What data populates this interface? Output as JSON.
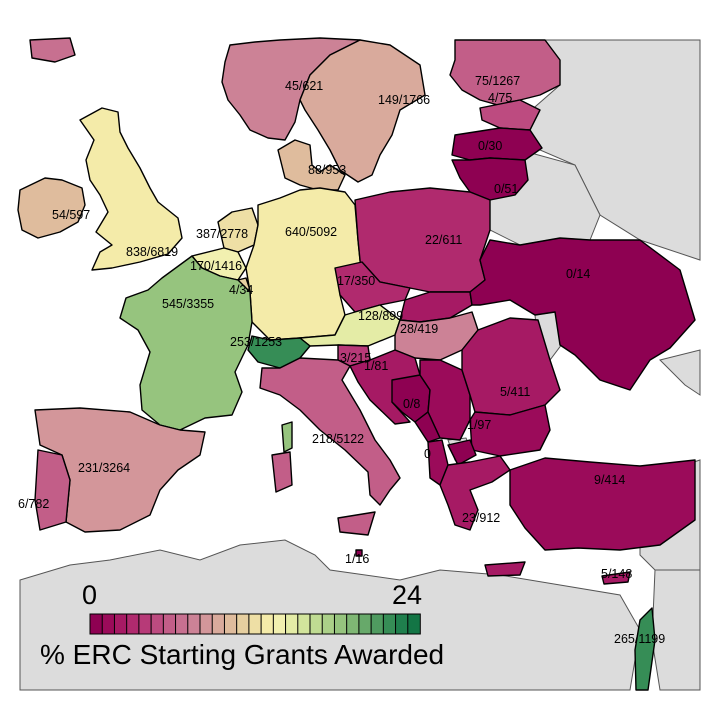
{
  "colorbar": {
    "min_label": "0",
    "max_label": "24",
    "title": "% ERC Starting Grants Awarded",
    "min_value": 0,
    "max_value": 24,
    "colors": [
      "#8e0152",
      "#9b0b5a",
      "#a61a64",
      "#b02a6e",
      "#b73a78",
      "#bd4b80",
      "#c25e88",
      "#c77090",
      "#cc8296",
      "#d3969a",
      "#d9aa9c",
      "#dfbc9d",
      "#e6cfa0",
      "#eedfa5",
      "#f4eba9",
      "#f2f0b0",
      "#e4eca6",
      "#d2e49c",
      "#bfdb92",
      "#abd088",
      "#96c47e",
      "#7fb774",
      "#67a96a",
      "#4f9b60",
      "#368d56",
      "#1f7f4d",
      "#137545"
    ],
    "colors_note": ""
  },
  "map_colors": {
    "sea": "#ffffff",
    "neighbor": "#dcdcdc"
  },
  "countries": [
    {
      "id": "iceland",
      "label": ""
    },
    {
      "id": "norway",
      "label": "45/621"
    },
    {
      "id": "sweden",
      "label": "149/1766"
    },
    {
      "id": "finland",
      "label": "75/1267"
    },
    {
      "id": "estonia",
      "label": "4/75"
    },
    {
      "id": "latvia",
      "label": "0/30"
    },
    {
      "id": "lithuania",
      "label": "0/51"
    },
    {
      "id": "denmark",
      "label": "88/953"
    },
    {
      "id": "ireland",
      "label": "54/597"
    },
    {
      "id": "uk",
      "label": "838/6819"
    },
    {
      "id": "netherlands",
      "label": "387/2778"
    },
    {
      "id": "belgium",
      "label": "170/1416"
    },
    {
      "id": "luxembourg",
      "label": "4/34"
    },
    {
      "id": "germany",
      "label": "640/5092"
    },
    {
      "id": "poland",
      "label": "22/611"
    },
    {
      "id": "czechia",
      "label": "17/350"
    },
    {
      "id": "austria",
      "label": "128/899"
    },
    {
      "id": "slovakia",
      "label": ""
    },
    {
      "id": "hungary",
      "label": "28/419"
    },
    {
      "id": "ukraine",
      "label": "0/14"
    },
    {
      "id": "france",
      "label": "545/3355"
    },
    {
      "id": "switzerland",
      "label": "253/1253"
    },
    {
      "id": "slovenia",
      "label": "3/215"
    },
    {
      "id": "croatia",
      "label": "1/81"
    },
    {
      "id": "bosnia",
      "label": "0/8"
    },
    {
      "id": "serbia",
      "label": "1/97"
    },
    {
      "id": "romania",
      "label": "5/411"
    },
    {
      "id": "bulgaria",
      "label": ""
    },
    {
      "id": "macedonia",
      "label": "0"
    },
    {
      "id": "albania",
      "label": ""
    },
    {
      "id": "greece",
      "label": "23/912"
    },
    {
      "id": "turkey",
      "label": "9/414"
    },
    {
      "id": "italy",
      "label": "218/5122"
    },
    {
      "id": "spain",
      "label": "231/3264"
    },
    {
      "id": "portugal",
      "label": "6/782"
    },
    {
      "id": "malta",
      "label": "1/16"
    },
    {
      "id": "cyprus",
      "label": "5/148"
    },
    {
      "id": "israel",
      "label": "265/1199"
    }
  ]
}
